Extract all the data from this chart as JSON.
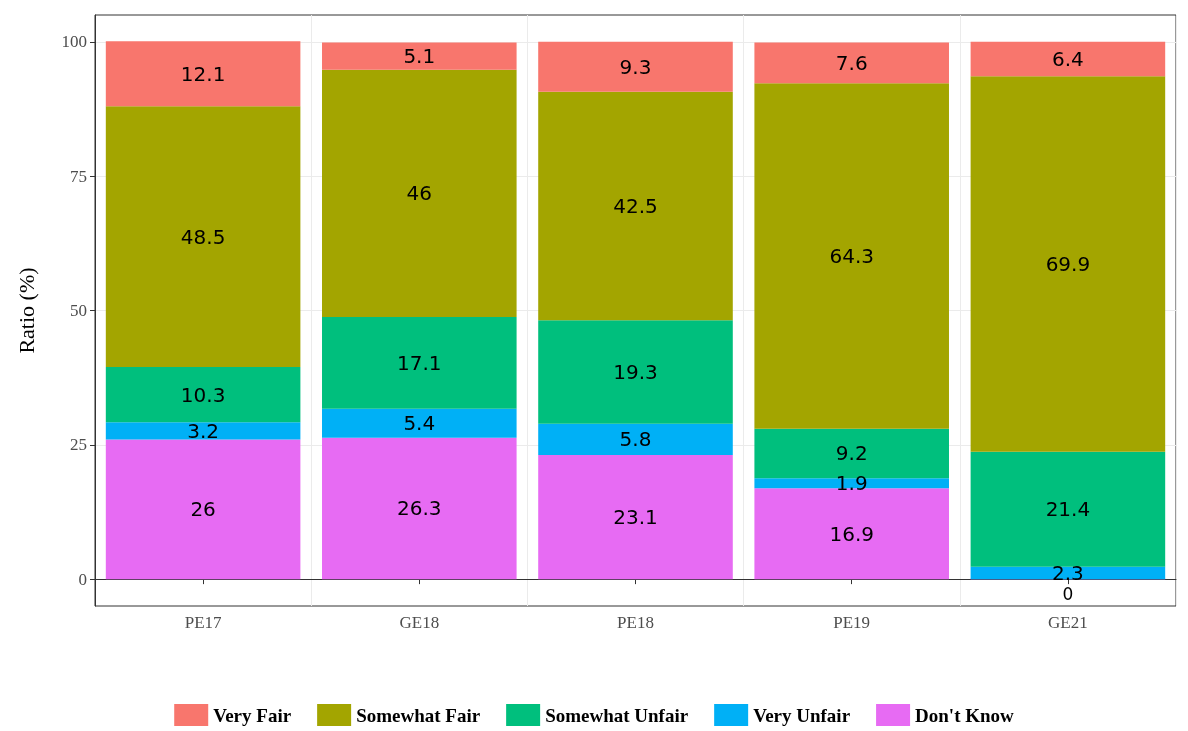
{
  "chart_data": {
    "type": "bar",
    "stacked": true,
    "ylabel": "Ratio (%)",
    "categories": [
      "PE17",
      "GE18",
      "PE18",
      "PE19",
      "GE21"
    ],
    "series": [
      {
        "name": "Don't Know",
        "color": "#e76bf3",
        "values": [
          26,
          26.3,
          23.1,
          16.9,
          0
        ]
      },
      {
        "name": "Very Unfair",
        "color": "#00b0f6",
        "values": [
          3.2,
          5.4,
          5.8,
          1.9,
          2.3
        ]
      },
      {
        "name": "Somewhat Unfair",
        "color": "#00bf7d",
        "values": [
          10.3,
          17.1,
          19.3,
          9.2,
          21.4
        ]
      },
      {
        "name": "Somewhat Fair",
        "color": "#a3a500",
        "values": [
          48.5,
          46,
          42.5,
          64.3,
          69.9
        ]
      },
      {
        "name": "Very Fair",
        "color": "#f8766d",
        "values": [
          12.1,
          5.1,
          9.3,
          7.6,
          6.4
        ]
      }
    ],
    "ylim": [
      -5,
      105
    ],
    "yticks": [
      0,
      25,
      50,
      75,
      100
    ],
    "grid": true,
    "legend": "bottom",
    "data_labels": true
  }
}
